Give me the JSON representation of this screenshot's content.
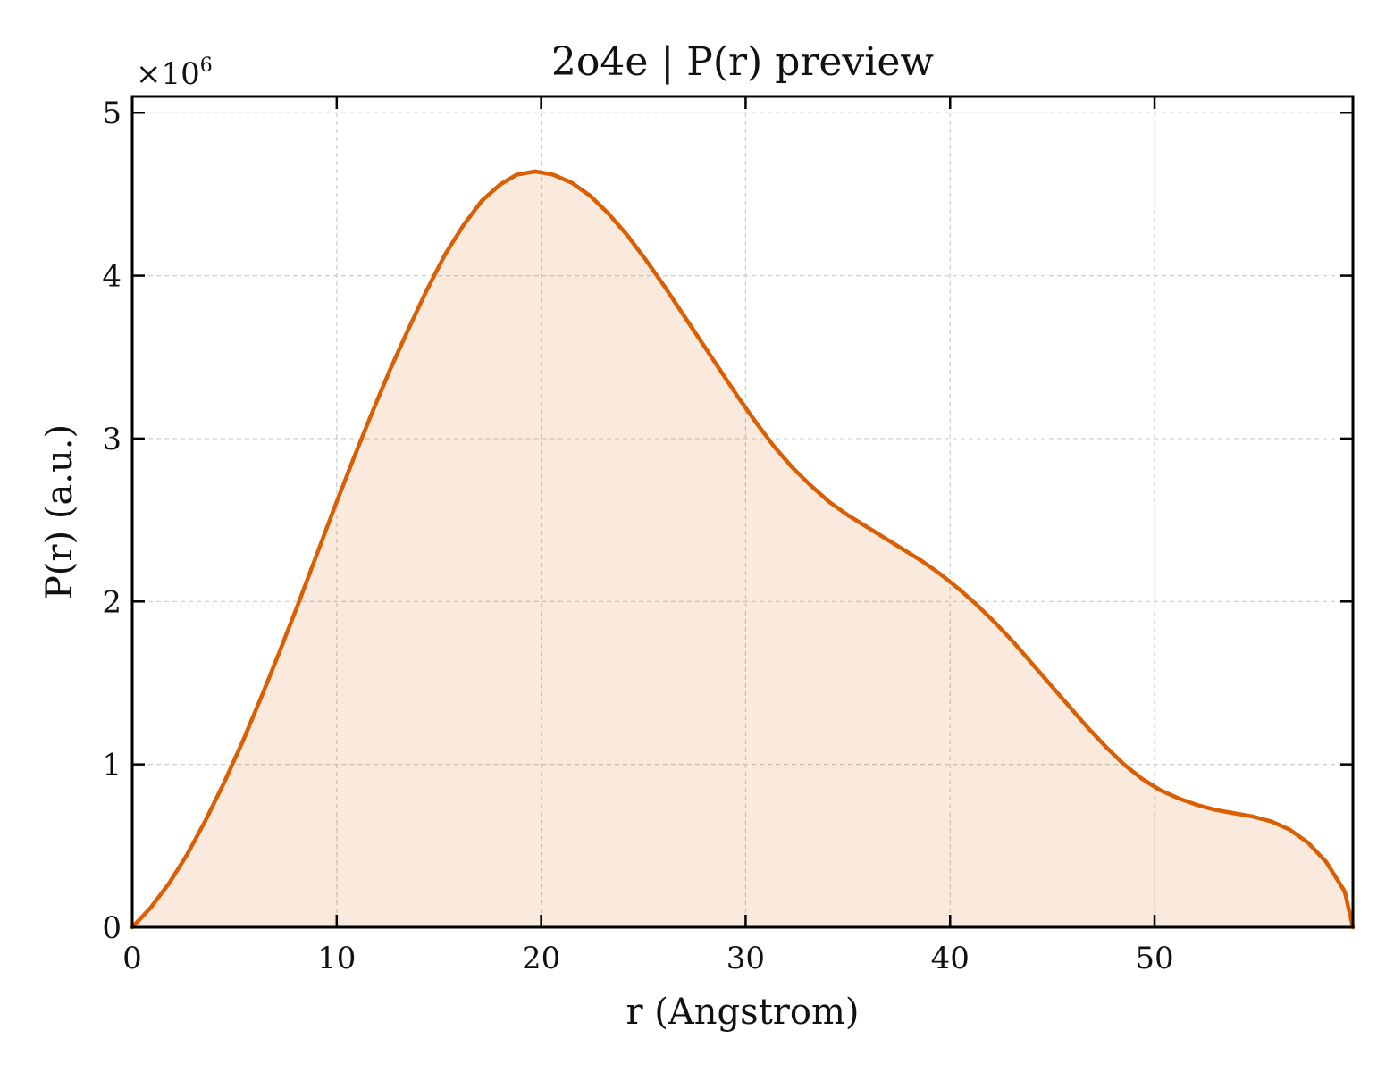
{
  "chart_data": {
    "type": "area",
    "title": "2o4e | P(r) preview",
    "xlabel": "r (Angstrom)",
    "ylabel": "P(r) (a.u.)",
    "y_multiplier_base": "×10",
    "y_multiplier_exponent": "6",
    "xlim": [
      0,
      59.7
    ],
    "ylim": [
      0,
      5.1
    ],
    "x_ticks": [
      0,
      10,
      20,
      30,
      40,
      50
    ],
    "x_tick_labels": [
      "0",
      "10",
      "20",
      "30",
      "40",
      "50"
    ],
    "y_ticks": [
      0,
      1,
      2,
      3,
      4,
      5
    ],
    "y_tick_labels": [
      "0",
      "1",
      "2",
      "3",
      "4",
      "5"
    ],
    "grid": true,
    "series": [
      {
        "color": "#d95f02",
        "fill_color": "#d95f02",
        "fill_opacity": 0.13,
        "x": [
          0,
          0.9,
          1.8,
          2.7,
          3.6,
          4.5,
          5.4,
          6.3,
          7.2,
          8.1,
          9.0,
          9.9,
          10.8,
          11.7,
          12.6,
          13.5,
          14.4,
          15.3,
          16.2,
          17.1,
          18.0,
          18.8,
          19.7,
          20.6,
          21.5,
          22.4,
          23.3,
          24.2,
          25.1,
          26.0,
          26.9,
          27.8,
          28.7,
          29.6,
          30.5,
          31.4,
          32.3,
          33.2,
          34.1,
          35.0,
          35.9,
          36.8,
          37.7,
          38.6,
          39.5,
          40.4,
          41.3,
          42.2,
          43.1,
          44.0,
          44.9,
          45.8,
          46.7,
          47.6,
          48.5,
          49.4,
          50.3,
          51.2,
          52.1,
          53.0,
          53.9,
          54.8,
          55.7,
          56.6,
          57.5,
          58.4,
          59.3,
          59.7
        ],
        "values": [
          0,
          0.12,
          0.27,
          0.45,
          0.66,
          0.89,
          1.14,
          1.41,
          1.69,
          1.98,
          2.28,
          2.58,
          2.87,
          3.15,
          3.42,
          3.67,
          3.91,
          4.13,
          4.31,
          4.46,
          4.56,
          4.62,
          4.64,
          4.62,
          4.57,
          4.49,
          4.38,
          4.25,
          4.1,
          3.94,
          3.77,
          3.6,
          3.43,
          3.26,
          3.1,
          2.95,
          2.82,
          2.71,
          2.61,
          2.53,
          2.46,
          2.39,
          2.32,
          2.25,
          2.17,
          2.08,
          1.98,
          1.87,
          1.75,
          1.62,
          1.49,
          1.36,
          1.23,
          1.11,
          1.0,
          0.91,
          0.84,
          0.79,
          0.75,
          0.72,
          0.7,
          0.68,
          0.65,
          0.6,
          0.52,
          0.4,
          0.22,
          0
        ]
      }
    ]
  }
}
